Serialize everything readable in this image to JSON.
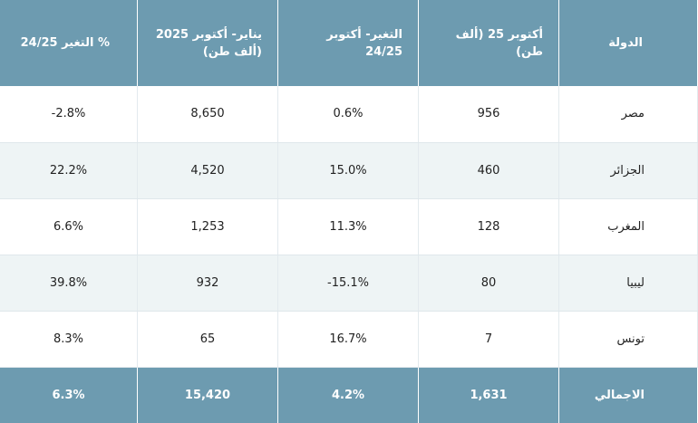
{
  "header": {
    "country": "الدولة",
    "oct25": "أكتوبر 25 (ألف طن)",
    "chg_oct": "التغير- أكتوبر 24/25",
    "ytd": "يناير- أكتوبر 2025 (ألف طن)",
    "chg_ytd": "% التغير 24/25"
  },
  "rows": [
    {
      "country": "مصر",
      "oct25": "956",
      "chg_oct": "0.6%",
      "ytd": "8,650",
      "chg_ytd": "2.8%-"
    },
    {
      "country": "الجزائر",
      "oct25": "460",
      "chg_oct": "15.0%",
      "ytd": "4,520",
      "chg_ytd": "22.2%"
    },
    {
      "country": "المغرب",
      "oct25": "128",
      "chg_oct": "11.3%",
      "ytd": "1,253",
      "chg_ytd": "6.6%"
    },
    {
      "country": "ليبيا",
      "oct25": "80",
      "chg_oct": "15.1%-",
      "ytd": "932",
      "chg_ytd": "39.8%"
    },
    {
      "country": "تونس",
      "oct25": "7",
      "chg_oct": "16.7%",
      "ytd": "65",
      "chg_ytd": "8.3%"
    }
  ],
  "total": {
    "country": "الاجمالي",
    "oct25": "1,631",
    "chg_oct": "4.2%",
    "ytd": "15,420",
    "chg_ytd": "6.3%"
  },
  "colors": {
    "header_bg": "#6d9bb0",
    "alt_row_bg": "#eef4f5",
    "text": "#222222"
  }
}
